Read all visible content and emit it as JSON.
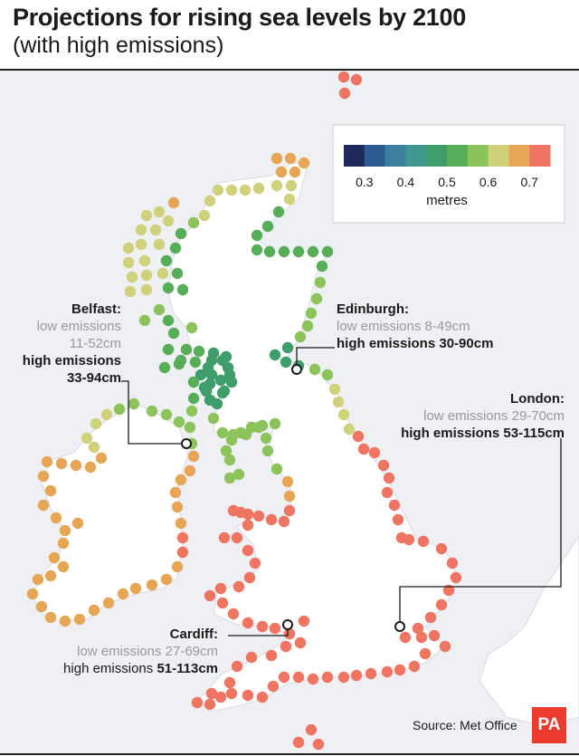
{
  "header": {
    "title": "Projections for rising sea levels by 2100",
    "subtitle": "(with high emissions)"
  },
  "legend": {
    "unit": "metres",
    "ticks": [
      "0.3",
      "0.4",
      "0.5",
      "0.6",
      "0.7"
    ],
    "colors": [
      "#1e2a5e",
      "#2d5c92",
      "#3a7f9e",
      "#40978e",
      "#3f9d6b",
      "#58ad58",
      "#8dc35b",
      "#cfd27a",
      "#e7a656",
      "#f07462"
    ]
  },
  "cities": {
    "belfast": {
      "name": "Belfast:",
      "low_label": "low emissions",
      "low_range": "11-52cm",
      "high_label": "high emissions",
      "high_range": "33-94cm"
    },
    "edinburgh": {
      "name": "Edinburgh:",
      "low": "low emissions 8-49cm",
      "high": "high emissions 30-90cm"
    },
    "london": {
      "name": "London:",
      "low": "low emissions 29-70cm",
      "high": "high emissions 53-115cm"
    },
    "cardiff": {
      "name": "Cardiff:",
      "low": "low emissions 27-69cm",
      "high_label": "high emissions ",
      "high_range": "51-113cm"
    }
  },
  "footer": {
    "source": "Source: Met Office",
    "logo": "PA"
  },
  "colors": {
    "land": "#ffffff",
    "sea": "#eef0f4",
    "marker_stroke": "#1a1a1a"
  }
}
